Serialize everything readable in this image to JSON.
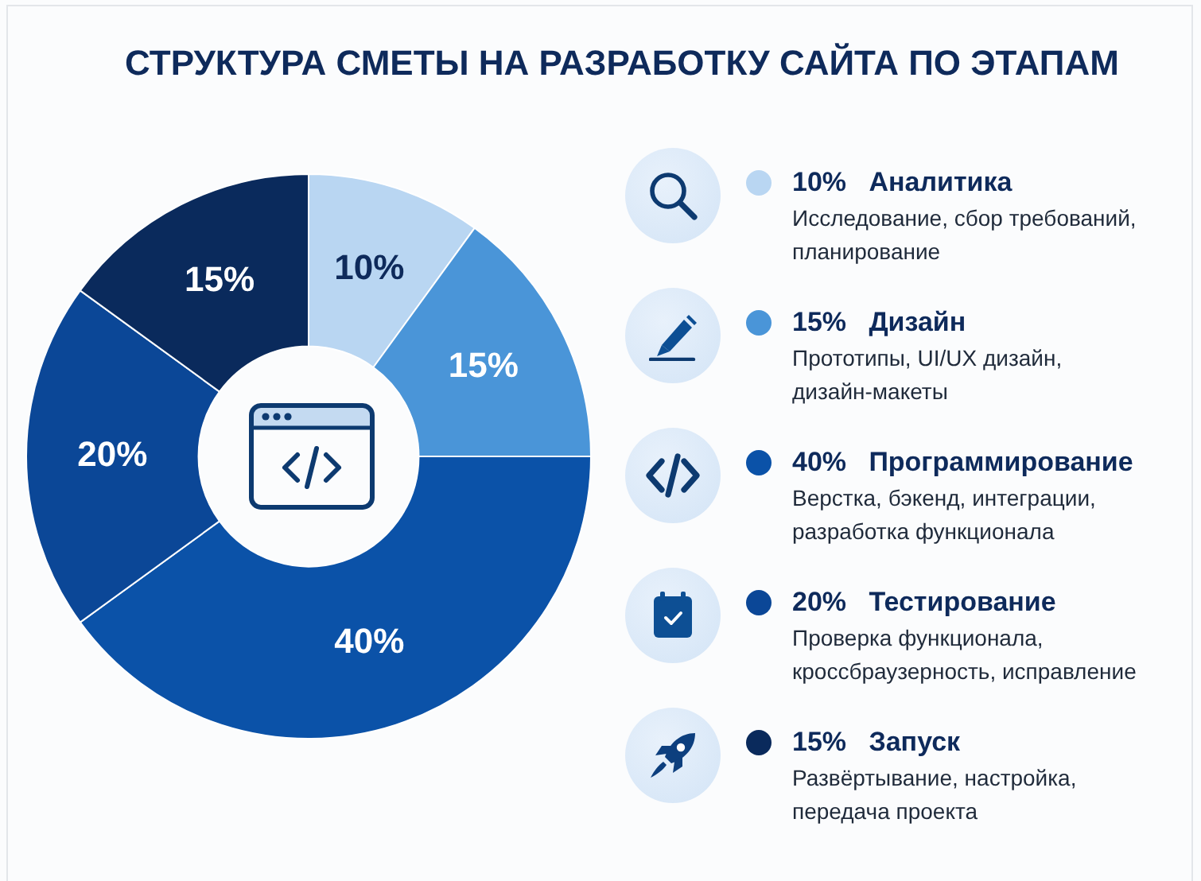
{
  "chart_data": {
    "type": "donut",
    "title": "СТРУКТУРА СМЕТЫ НА РАЗРАБОТКУ САЙТА ПО ЭТАПАМ",
    "categories": [
      "Аналитика",
      "Дизайн",
      "Программирование",
      "Тестирование",
      "Запуск"
    ],
    "values": [
      10,
      15,
      40,
      20,
      15
    ],
    "colors": [
      "#b9d6f2",
      "#4a95d8",
      "#0b52a8",
      "#0b4797",
      "#0a2a5c"
    ],
    "value_labels": [
      "10%",
      "15%",
      "40%",
      "20%",
      "15%"
    ],
    "annotations": [
      "Исследование, сбор требований, планирование",
      "Прототипы, UI/UX дизайн, дизайн-макеты",
      "Верстка, бэкенд, интеграции, разработка функционала",
      "Проверка функционала, кроссбраузерность, исправление",
      "Развёртывание, настройка, передача проекта"
    ],
    "legend": "right"
  }
}
